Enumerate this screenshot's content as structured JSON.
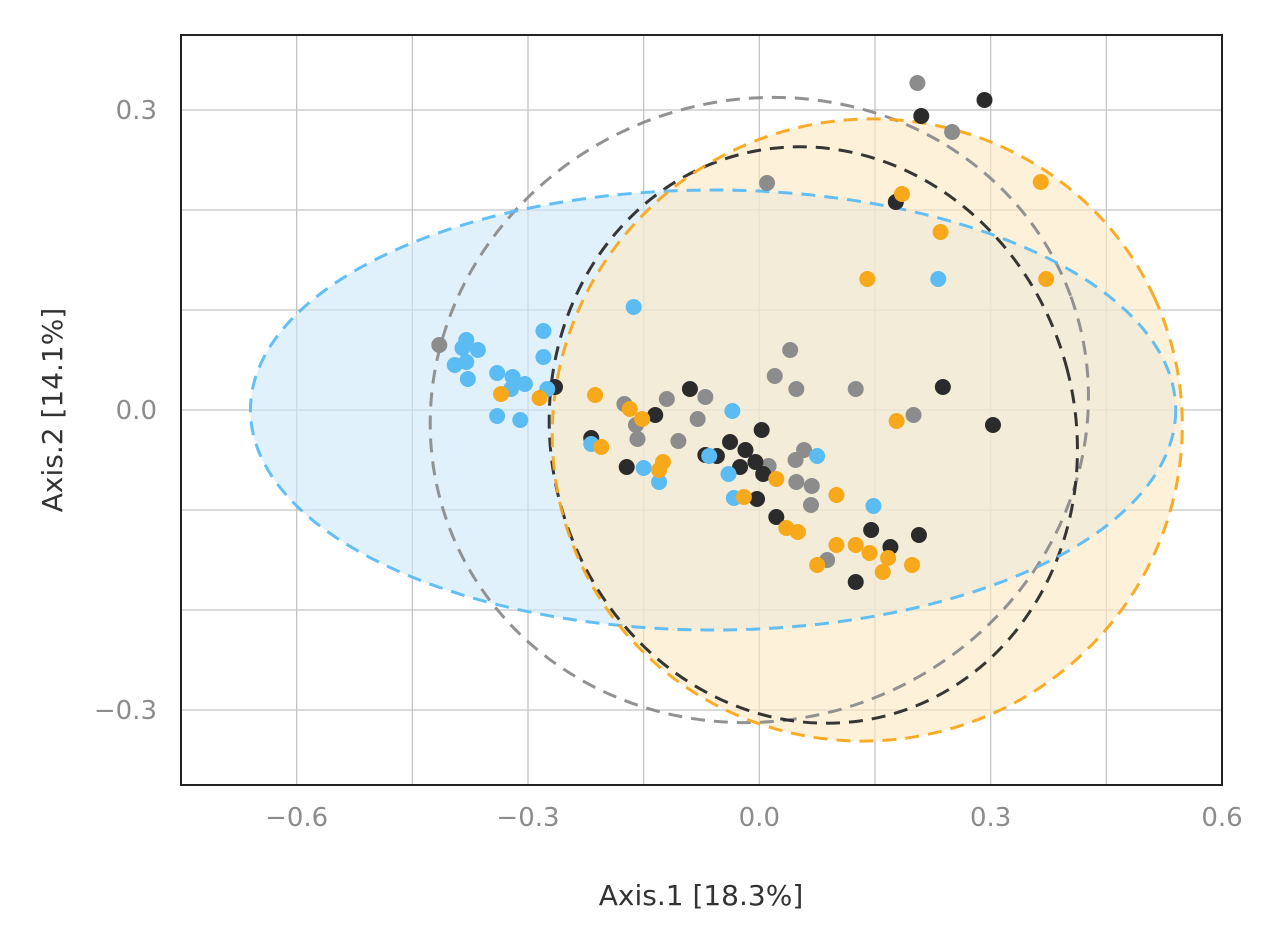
{
  "chart_data": {
    "type": "scatter",
    "title": "",
    "xlabel": "Axis.1 [18.3%]",
    "ylabel": "Axis.2 [14.1%]",
    "xlim": [
      -0.75,
      0.6
    ],
    "ylim": [
      -0.375,
      0.375
    ],
    "x_ticks": [
      -0.6,
      -0.3,
      0.0,
      0.3,
      0.6
    ],
    "x_tick_labels": [
      "−0.6",
      "−0.3",
      "0.0",
      "0.3",
      "0.6"
    ],
    "y_ticks": [
      -0.3,
      0.0,
      0.3
    ],
    "y_tick_labels": [
      "−0.3",
      "0.0",
      "0.3"
    ],
    "x_minor_gridlines": [
      -0.45,
      -0.15,
      0.15,
      0.45
    ],
    "y_minor_gridlines": [
      -0.2,
      -0.1,
      0.1,
      0.2
    ],
    "grid": true,
    "legend": "none",
    "series": [
      {
        "color": "#8c8c8c",
        "ellipse": {
          "cx": 0.0,
          "cy": 0.0,
          "rx": 0.43,
          "ry": 0.31,
          "angle_deg": -20,
          "filled": false,
          "fill": ""
        },
        "points": [
          [
            0.205,
            0.327
          ],
          [
            0.25,
            0.278
          ],
          [
            0.01,
            0.227
          ],
          [
            -0.415,
            0.065
          ],
          [
            0.04,
            0.06
          ],
          [
            0.02,
            0.034
          ],
          [
            0.048,
            0.021
          ],
          [
            0.125,
            0.021
          ],
          [
            -0.175,
            0.006
          ],
          [
            -0.12,
            0.011
          ],
          [
            -0.07,
            0.013
          ],
          [
            -0.08,
            -0.009
          ],
          [
            -0.16,
            -0.015
          ],
          [
            -0.158,
            -0.029
          ],
          [
            -0.105,
            -0.031
          ],
          [
            0.058,
            -0.04
          ],
          [
            0.047,
            -0.05
          ],
          [
            0.012,
            -0.056
          ],
          [
            0.048,
            -0.072
          ],
          [
            0.068,
            -0.076
          ],
          [
            0.067,
            -0.095
          ],
          [
            0.088,
            -0.15
          ],
          [
            0.2,
            -0.005
          ]
        ]
      },
      {
        "color": "#2b2b2b",
        "ellipse": {
          "cx": 0.07,
          "cy": -0.025,
          "rx": 0.34,
          "ry": 0.29,
          "angle_deg": -15,
          "filled": false,
          "fill": ""
        },
        "points": [
          [
            0.292,
            0.31
          ],
          [
            0.21,
            0.294
          ],
          [
            0.177,
            0.208
          ],
          [
            0.238,
            0.023
          ],
          [
            0.303,
            -0.015
          ],
          [
            -0.265,
            0.023
          ],
          [
            -0.09,
            0.021
          ],
          [
            -0.135,
            -0.005
          ],
          [
            0.003,
            -0.02
          ],
          [
            -0.218,
            -0.028
          ],
          [
            -0.038,
            -0.032
          ],
          [
            -0.018,
            -0.04
          ],
          [
            -0.07,
            -0.045
          ],
          [
            -0.055,
            -0.046
          ],
          [
            -0.172,
            -0.057
          ],
          [
            -0.025,
            -0.057
          ],
          [
            -0.005,
            -0.052
          ],
          [
            0.005,
            -0.064
          ],
          [
            -0.003,
            -0.089
          ],
          [
            0.022,
            -0.107
          ],
          [
            0.145,
            -0.12
          ],
          [
            0.207,
            -0.125
          ],
          [
            0.17,
            -0.137
          ],
          [
            0.125,
            -0.172
          ]
        ]
      },
      {
        "color": "#5bbcf4",
        "ellipse": {
          "cx": -0.06,
          "cy": 0.0,
          "rx": 0.6,
          "ry": 0.22,
          "angle_deg": 0,
          "filled": true,
          "fill": "#cfe8fa"
        },
        "points": [
          [
            -0.163,
            0.103
          ],
          [
            0.232,
            0.131
          ],
          [
            -0.28,
            0.079
          ],
          [
            -0.38,
            0.07
          ],
          [
            -0.385,
            0.062
          ],
          [
            -0.365,
            0.06
          ],
          [
            -0.38,
            0.048
          ],
          [
            -0.395,
            0.045
          ],
          [
            -0.28,
            0.053
          ],
          [
            -0.34,
            0.037
          ],
          [
            -0.32,
            0.033
          ],
          [
            -0.378,
            0.031
          ],
          [
            -0.304,
            0.026
          ],
          [
            -0.322,
            0.021
          ],
          [
            -0.275,
            0.021
          ],
          [
            -0.34,
            -0.006
          ],
          [
            -0.31,
            -0.01
          ],
          [
            -0.035,
            -0.001
          ],
          [
            -0.218,
            -0.034
          ],
          [
            -0.15,
            -0.058
          ],
          [
            -0.065,
            -0.046
          ],
          [
            0.075,
            -0.046
          ],
          [
            -0.04,
            -0.064
          ],
          [
            -0.13,
            -0.072
          ],
          [
            -0.033,
            -0.088
          ],
          [
            0.148,
            -0.096
          ]
        ]
      },
      {
        "color": "#f8a81b",
        "ellipse": {
          "cx": 0.14,
          "cy": -0.02,
          "rx": 0.41,
          "ry": 0.31,
          "angle_deg": -25,
          "filled": true,
          "fill": "#fde9c4"
        },
        "points": [
          [
            0.365,
            0.228
          ],
          [
            0.185,
            0.216
          ],
          [
            0.235,
            0.178
          ],
          [
            0.14,
            0.131
          ],
          [
            0.372,
            0.131
          ],
          [
            -0.335,
            0.016
          ],
          [
            -0.285,
            0.012
          ],
          [
            -0.213,
            0.015
          ],
          [
            -0.168,
            0.001
          ],
          [
            -0.152,
            -0.009
          ],
          [
            0.178,
            -0.011
          ],
          [
            -0.205,
            -0.037
          ],
          [
            -0.125,
            -0.052
          ],
          [
            -0.13,
            -0.06
          ],
          [
            0.022,
            -0.069
          ],
          [
            0.1,
            -0.085
          ],
          [
            -0.02,
            -0.087
          ],
          [
            0.035,
            -0.118
          ],
          [
            0.05,
            -0.122
          ],
          [
            0.1,
            -0.135
          ],
          [
            0.125,
            -0.135
          ],
          [
            0.143,
            -0.143
          ],
          [
            0.167,
            -0.148
          ],
          [
            0.075,
            -0.155
          ],
          [
            0.198,
            -0.155
          ],
          [
            0.16,
            -0.162
          ]
        ]
      }
    ]
  }
}
